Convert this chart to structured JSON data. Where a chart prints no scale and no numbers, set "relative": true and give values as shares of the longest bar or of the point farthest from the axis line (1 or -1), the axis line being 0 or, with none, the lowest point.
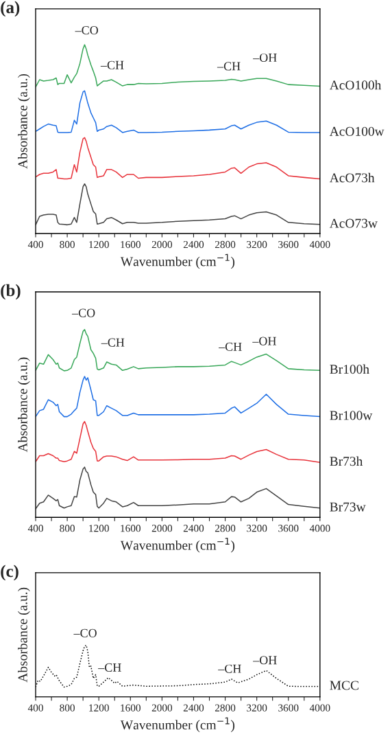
{
  "chart_data": [
    {
      "type": "line",
      "title": "(a)",
      "xlabel": "Wavenumber (cm$^{−1}$)",
      "ylabel": "Absorbance (a.u.)",
      "relative": true,
      "grid": false,
      "legend": false,
      "marker": "none",
      "xlim": [
        400,
        4000
      ],
      "xticks": [
        400,
        {
          "value": 600,
          "label": null
        },
        800,
        {
          "value": 1000,
          "label": null
        },
        1200,
        {
          "value": 1400,
          "label": null
        },
        1600,
        {
          "value": 1800,
          "label": null
        },
        2000,
        {
          "value": 2200,
          "label": null
        },
        2400,
        {
          "value": 2600,
          "label": null
        },
        2800,
        {
          "value": 3000,
          "label": null
        },
        3200,
        {
          "value": 3400,
          "label": null
        },
        3600,
        {
          "value": 3800,
          "label": null
        },
        4000
      ],
      "x": [
        400,
        450,
        500,
        560,
        620,
        660,
        680,
        700,
        760,
        800,
        850,
        890,
        920,
        960,
        1000,
        1020,
        1040,
        1060,
        1100,
        1130,
        1160,
        1180,
        1200,
        1260,
        1300,
        1360,
        1420,
        1500,
        1560,
        1640,
        1700,
        1800,
        2000,
        2200,
        2400,
        2600,
        2800,
        2880,
        2920,
        3000,
        3100,
        3200,
        3320,
        3450,
        3600,
        3800,
        4000
      ],
      "series": [
        {
          "name": "AcO100h",
          "color": "#3aa85a",
          "line_style": "solid",
          "values": [
            0.776,
            0.815,
            0.808,
            0.811,
            0.815,
            0.824,
            0.789,
            0.795,
            0.795,
            0.841,
            0.798,
            0.828,
            0.847,
            0.9,
            0.978,
            1.0,
            0.978,
            0.945,
            0.893,
            0.86,
            0.824,
            0.782,
            0.789,
            0.808,
            0.808,
            0.815,
            0.802,
            0.782,
            0.789,
            0.789,
            0.795,
            0.793,
            0.795,
            0.802,
            0.806,
            0.808,
            0.811,
            0.817,
            0.815,
            0.808,
            0.815,
            0.821,
            0.821,
            0.808,
            0.789,
            0.785,
            0.78
          ]
        },
        {
          "name": "AcO100w",
          "color": "#1f6fe5",
          "line_style": "solid",
          "values": [
            0.541,
            0.554,
            0.567,
            0.58,
            0.574,
            0.571,
            0.537,
            0.535,
            0.535,
            0.535,
            0.537,
            0.6,
            0.58,
            0.691,
            0.75,
            0.756,
            0.724,
            0.691,
            0.639,
            0.613,
            0.587,
            0.541,
            0.548,
            0.554,
            0.567,
            0.574,
            0.561,
            0.535,
            0.541,
            0.548,
            0.535,
            0.535,
            0.537,
            0.541,
            0.544,
            0.548,
            0.554,
            0.571,
            0.574,
            0.554,
            0.574,
            0.589,
            0.596,
            0.574,
            0.537,
            0.535,
            0.535
          ]
        },
        {
          "name": "AcO73h",
          "color": "#e8343c",
          "line_style": "solid",
          "values": [
            0.3,
            0.313,
            0.319,
            0.319,
            0.326,
            0.339,
            0.293,
            0.293,
            0.289,
            0.289,
            0.293,
            0.365,
            0.326,
            0.43,
            0.502,
            0.508,
            0.489,
            0.456,
            0.404,
            0.365,
            0.352,
            0.297,
            0.3,
            0.306,
            0.339,
            0.339,
            0.326,
            0.297,
            0.313,
            0.313,
            0.293,
            0.297,
            0.297,
            0.302,
            0.306,
            0.313,
            0.326,
            0.346,
            0.348,
            0.319,
            0.352,
            0.369,
            0.375,
            0.352,
            0.306,
            0.297,
            0.289
          ]
        },
        {
          "name": "AcO73w",
          "color": "#444444",
          "line_style": "solid",
          "values": [
            0.046,
            0.091,
            0.098,
            0.102,
            0.102,
            0.098,
            0.059,
            0.05,
            0.048,
            0.046,
            0.05,
            0.085,
            0.059,
            0.156,
            0.248,
            0.263,
            0.248,
            0.209,
            0.156,
            0.117,
            0.104,
            0.05,
            0.052,
            0.059,
            0.078,
            0.085,
            0.072,
            0.052,
            0.059,
            0.059,
            0.055,
            0.055,
            0.059,
            0.065,
            0.068,
            0.072,
            0.078,
            0.091,
            0.094,
            0.078,
            0.098,
            0.11,
            0.115,
            0.098,
            0.059,
            0.052,
            0.048
          ]
        }
      ],
      "annotations": [
        "–CO",
        "–CH",
        "–CH",
        "–OH"
      ]
    },
    {
      "type": "line",
      "title": "(b)",
      "xlabel": "Wavenumber (cm$^{−1}$)",
      "ylabel": "Absorbance (a.u.)",
      "relative": true,
      "grid": false,
      "legend": false,
      "marker": "none",
      "xlim": [
        400,
        4000
      ],
      "xticks": [
        400,
        {
          "value": 600,
          "label": null
        },
        800,
        {
          "value": 1000,
          "label": null
        },
        1200,
        {
          "value": 1400,
          "label": null
        },
        1600,
        {
          "value": 1800,
          "label": null
        },
        2000,
        {
          "value": 2200,
          "label": null
        },
        2400,
        {
          "value": 2600,
          "label": null
        },
        2800,
        {
          "value": 3000,
          "label": null
        },
        3200,
        {
          "value": 3400,
          "label": null
        },
        3600,
        {
          "value": 3800,
          "label": null
        },
        4000
      ],
      "x": [
        400,
        450,
        500,
        560,
        620,
        660,
        680,
        700,
        760,
        800,
        850,
        890,
        920,
        960,
        1000,
        1020,
        1040,
        1060,
        1100,
        1130,
        1160,
        1180,
        1200,
        1260,
        1300,
        1360,
        1420,
        1500,
        1560,
        1640,
        1700,
        1800,
        2000,
        2200,
        2400,
        2600,
        2800,
        2880,
        2920,
        3000,
        3100,
        3200,
        3320,
        3450,
        3600,
        3800,
        4000
      ],
      "series": [
        {
          "name": "Br100h",
          "color": "#3aa85a",
          "line_style": "solid",
          "values": [
            0.782,
            0.821,
            0.815,
            0.866,
            0.84,
            0.815,
            0.821,
            0.795,
            0.78,
            0.782,
            0.795,
            0.84,
            0.853,
            0.925,
            0.99,
            1.0,
            0.977,
            0.964,
            0.892,
            0.873,
            0.847,
            0.789,
            0.785,
            0.795,
            0.827,
            0.815,
            0.811,
            0.782,
            0.789,
            0.802,
            0.791,
            0.795,
            0.798,
            0.802,
            0.802,
            0.804,
            0.811,
            0.83,
            0.824,
            0.811,
            0.831,
            0.853,
            0.869,
            0.834,
            0.791,
            0.785,
            0.782
          ]
        },
        {
          "name": "Br100w",
          "color": "#1f6fe5",
          "line_style": "solid",
          "values": [
            0.536,
            0.568,
            0.575,
            0.626,
            0.613,
            0.594,
            0.601,
            0.562,
            0.536,
            0.536,
            0.549,
            0.568,
            0.581,
            0.665,
            0.73,
            0.75,
            0.73,
            0.743,
            0.678,
            0.626,
            0.62,
            0.542,
            0.542,
            0.562,
            0.594,
            0.581,
            0.568,
            0.542,
            0.542,
            0.555,
            0.546,
            0.546,
            0.546,
            0.546,
            0.546,
            0.549,
            0.555,
            0.581,
            0.588,
            0.555,
            0.581,
            0.607,
            0.655,
            0.601,
            0.549,
            0.542,
            0.536
          ]
        },
        {
          "name": "Br73h",
          "color": "#e8343c",
          "line_style": "solid",
          "values": [
            0.296,
            0.328,
            0.328,
            0.339,
            0.328,
            0.315,
            0.315,
            0.302,
            0.296,
            0.3,
            0.309,
            0.351,
            0.341,
            0.419,
            0.497,
            0.51,
            0.49,
            0.458,
            0.399,
            0.367,
            0.351,
            0.3,
            0.3,
            0.322,
            0.326,
            0.326,
            0.322,
            0.309,
            0.302,
            0.322,
            0.305,
            0.305,
            0.305,
            0.306,
            0.309,
            0.309,
            0.315,
            0.328,
            0.326,
            0.309,
            0.331,
            0.35,
            0.361,
            0.335,
            0.309,
            0.305,
            0.292
          ]
        },
        {
          "name": "Br73w",
          "color": "#444444",
          "line_style": "solid",
          "values": [
            0.045,
            0.075,
            0.082,
            0.118,
            0.101,
            0.088,
            0.095,
            0.062,
            0.049,
            0.056,
            0.062,
            0.11,
            0.108,
            0.198,
            0.257,
            0.267,
            0.244,
            0.237,
            0.173,
            0.134,
            0.121,
            0.058,
            0.049,
            0.075,
            0.101,
            0.088,
            0.082,
            0.056,
            0.062,
            0.079,
            0.062,
            0.062,
            0.062,
            0.066,
            0.071,
            0.071,
            0.082,
            0.11,
            0.108,
            0.082,
            0.101,
            0.134,
            0.153,
            0.114,
            0.068,
            0.058,
            0.049
          ]
        }
      ],
      "annotations": [
        "–CO",
        "–CH",
        "–CH",
        "–OH"
      ]
    },
    {
      "type": "line",
      "title": "(c)",
      "xlabel": "Wavenumber (cm$^{−1}$)",
      "ylabel": "Absorbance (a.u.)",
      "relative": true,
      "grid": false,
      "legend": false,
      "marker": "none",
      "xlim": [
        400,
        4000
      ],
      "xticks": [
        400,
        {
          "value": 600,
          "label": null
        },
        800,
        {
          "value": 1000,
          "label": null
        },
        1200,
        {
          "value": 1400,
          "label": null
        },
        1600,
        {
          "value": 1800,
          "label": null
        },
        2000,
        {
          "value": 2200,
          "label": null
        },
        2400,
        {
          "value": 2600,
          "label": null
        },
        2800,
        {
          "value": 3000,
          "label": null
        },
        3200,
        {
          "value": 3400,
          "label": null
        },
        3600,
        {
          "value": 3800,
          "label": null
        },
        4000
      ],
      "x": [
        400,
        430,
        460,
        500,
        560,
        600,
        640,
        660,
        700,
        760,
        800,
        850,
        890,
        920,
        960,
        1000,
        1020,
        1040,
        1060,
        1080,
        1100,
        1130,
        1160,
        1180,
        1200,
        1260,
        1320,
        1360,
        1400,
        1430,
        1500,
        1640,
        1800,
        2000,
        2200,
        2400,
        2600,
        2800,
        2880,
        2960,
        3100,
        3200,
        3320,
        3450,
        3600,
        3800,
        4000
      ],
      "series": [
        {
          "name": "MCC",
          "color": "#000000",
          "line_style": "dotted",
          "values": [
            0.19,
            0.319,
            0.3,
            0.405,
            0.571,
            0.476,
            0.405,
            0.429,
            0.31,
            0.19,
            0.205,
            0.238,
            0.357,
            0.381,
            0.643,
            0.89,
            0.976,
            1.0,
            0.881,
            0.571,
            0.595,
            0.357,
            0.429,
            0.214,
            0.205,
            0.286,
            0.371,
            0.319,
            0.262,
            0.3,
            0.205,
            0.229,
            0.205,
            0.21,
            0.214,
            0.238,
            0.252,
            0.286,
            0.343,
            0.271,
            0.343,
            0.429,
            0.51,
            0.357,
            0.205,
            0.2,
            0.2
          ]
        }
      ],
      "annotations": [
        "–CO",
        "–CH",
        "–CH",
        "–OH"
      ]
    }
  ]
}
